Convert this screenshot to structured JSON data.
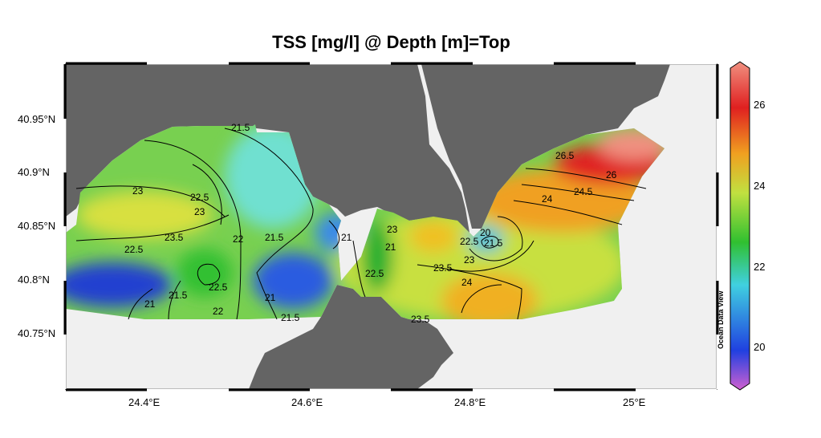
{
  "title": "TSS [mg/l] @ Depth [m]=Top",
  "lat_labels": [
    "40.95°N",
    "40.9°N",
    "40.85°N",
    "40.8°N",
    "40.75°N"
  ],
  "lon_labels": [
    "24.4°E",
    "24.6°E",
    "24.8°E",
    "25°E"
  ],
  "colorbar": {
    "ticks": [
      "26",
      "24",
      "22",
      "20"
    ],
    "min": 19,
    "max": 27,
    "colors": [
      "#d060d0",
      "#2040e0",
      "#40d0e0",
      "#30c030",
      "#c0e040",
      "#f0a020",
      "#e02020",
      "#f09080"
    ]
  },
  "brand": "Ocean Data View",
  "contour_labels": [
    "21.5",
    "23",
    "22.5",
    "23",
    "23.5",
    "22.5",
    "22",
    "21.5",
    "21",
    "22.5",
    "21",
    "21.5",
    "21",
    "22",
    "21.5",
    "23",
    "22.5",
    "26.5",
    "26",
    "24.5",
    "24",
    "20",
    "21.5",
    "22.5",
    "23",
    "23.5",
    "24",
    "21",
    "23.5"
  ],
  "colors": {
    "land": "#646464",
    "outside": "#f0f0f0"
  }
}
